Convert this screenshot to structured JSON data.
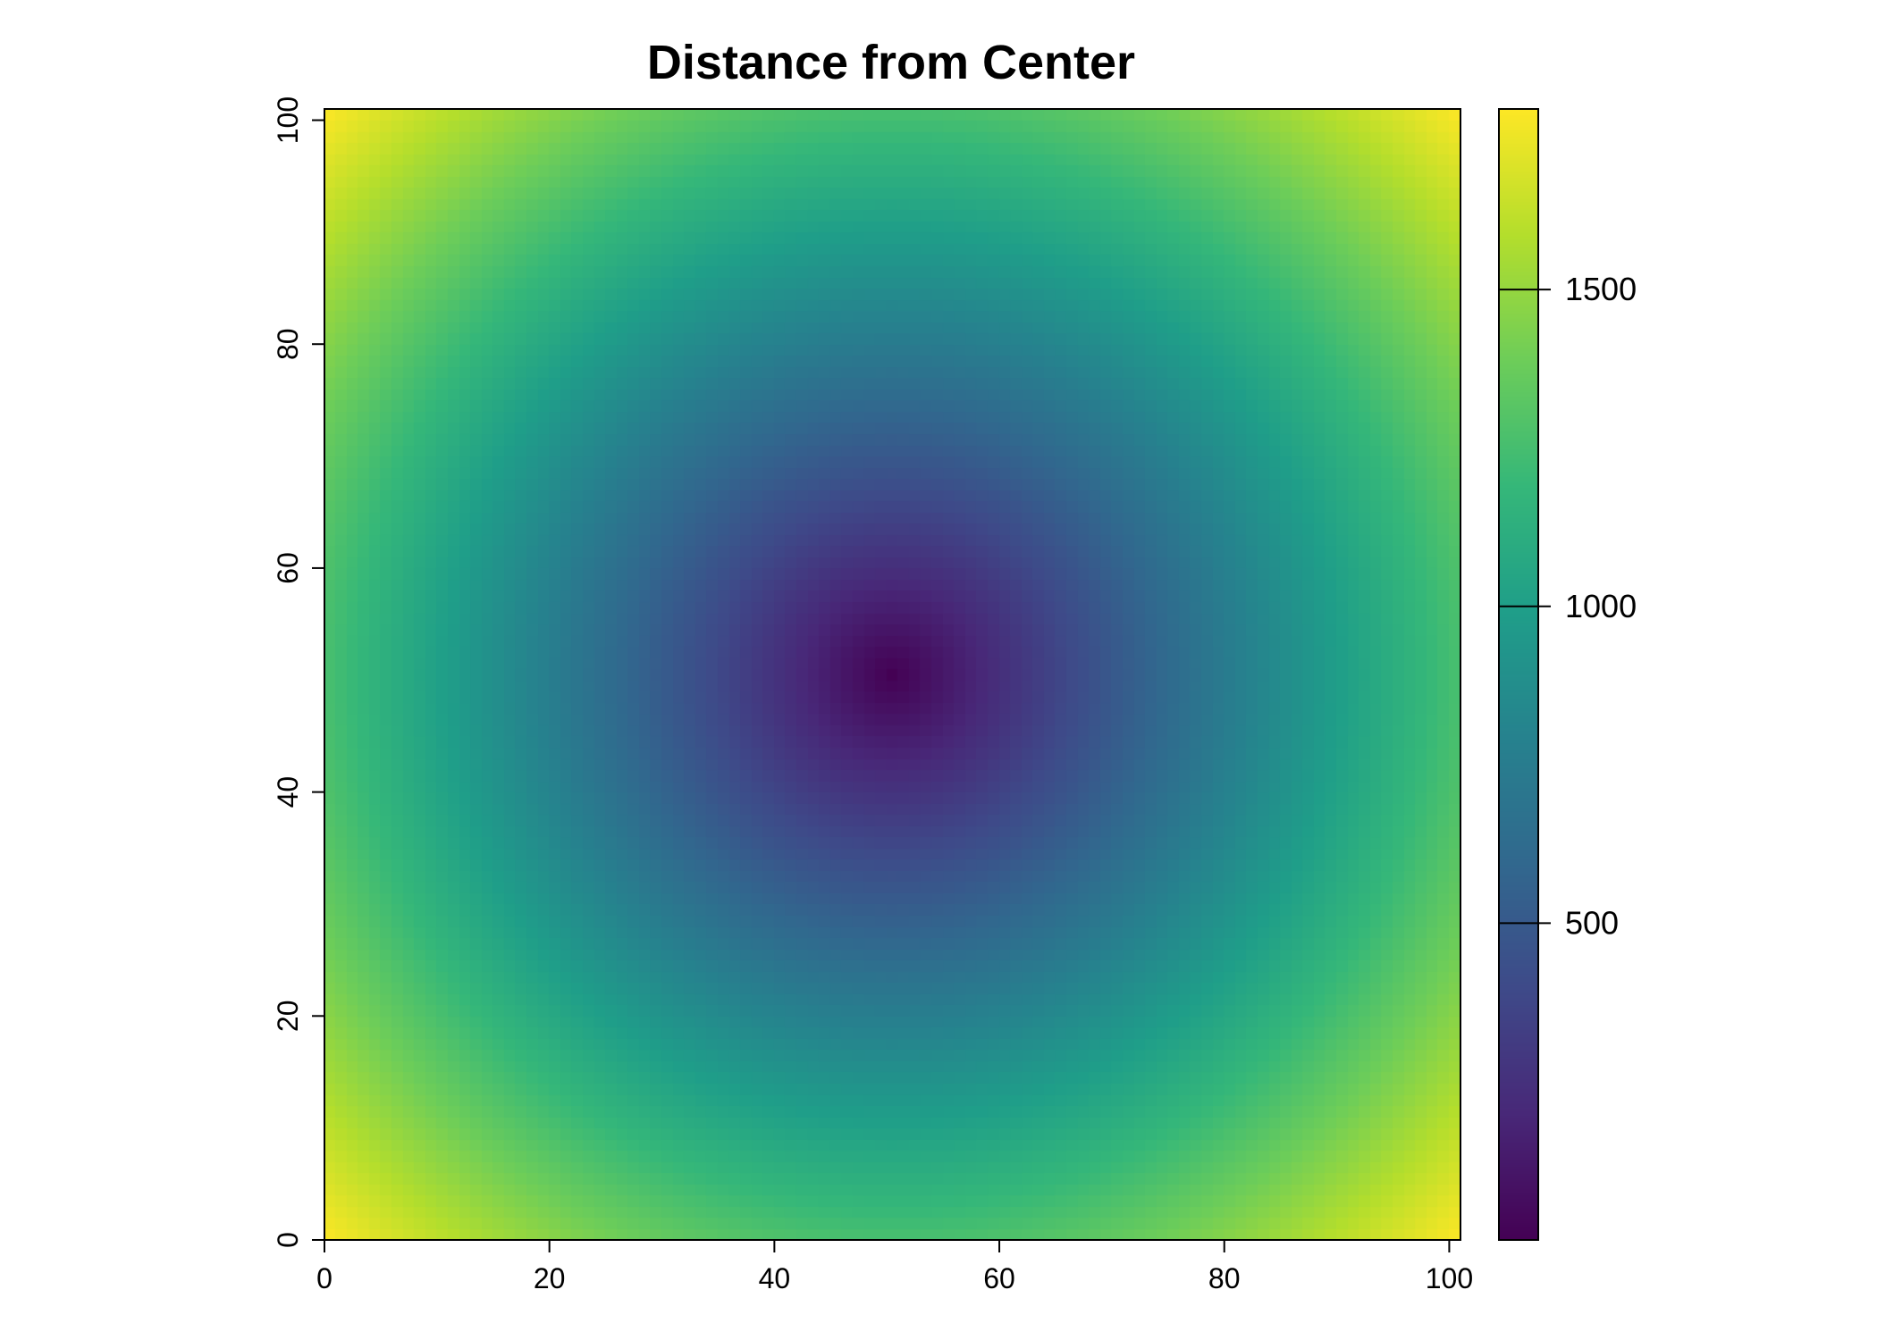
{
  "chart_data": {
    "type": "heatmap",
    "title": "Distance from Center",
    "xlabel": "",
    "ylabel": "",
    "xlim": [
      0,
      101
    ],
    "ylim": [
      0,
      101
    ],
    "x_ticks": [
      "0",
      "20",
      "40",
      "60",
      "80",
      "100"
    ],
    "y_ticks": [
      "0",
      "20",
      "40",
      "60",
      "80",
      "100"
    ],
    "grid": {
      "ncol": 101,
      "nrow": 101,
      "cell_size": 25,
      "center": [
        50.5,
        50.5
      ],
      "value_function": "euclidean distance from center cell, in cell_size units"
    },
    "value_range": [
      0,
      1785
    ],
    "colorbar": {
      "position": "right",
      "ticks": [
        500,
        1000,
        1500
      ],
      "tick_labels": [
        "500",
        "1000",
        "1500"
      ],
      "palette": "viridis",
      "colors": [
        "#440154",
        "#482878",
        "#3E4A89",
        "#31688E",
        "#26828E",
        "#1F9E89",
        "#35B779",
        "#6DCD59",
        "#B4DE2C",
        "#FDE725"
      ]
    },
    "grid_lines": false
  }
}
